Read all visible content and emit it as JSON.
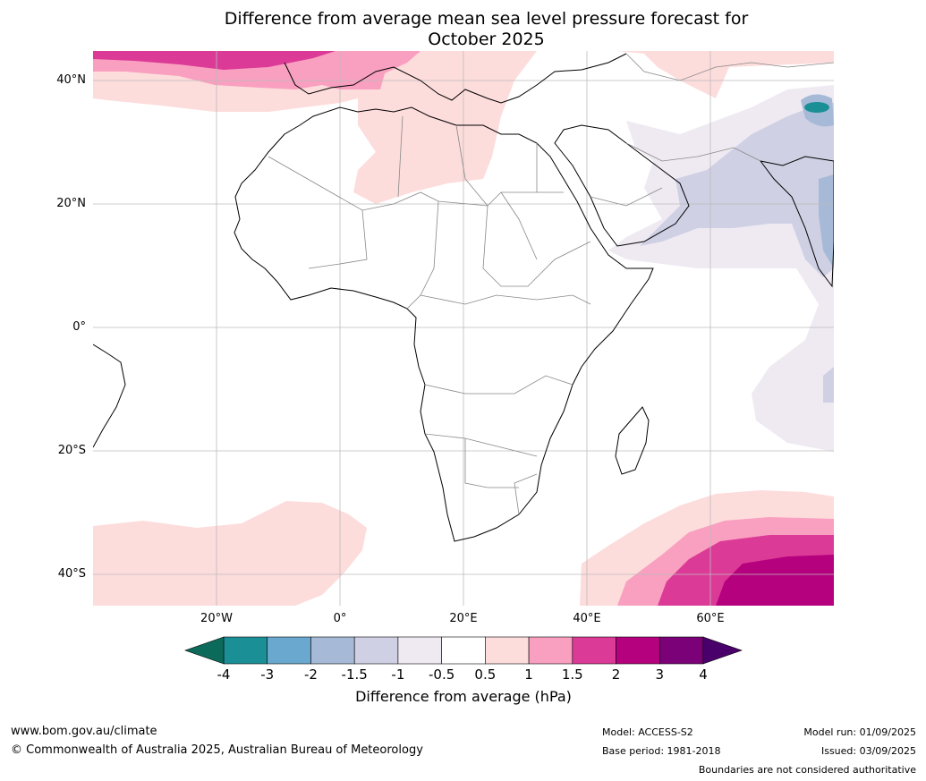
{
  "title_line1": "Difference from average mean sea level pressure forecast for",
  "title_line2": "October 2025",
  "lat_labels": [
    "40°N",
    "20°N",
    "0°",
    "20°S",
    "40°S"
  ],
  "lon_labels": [
    "20°W",
    "0°",
    "20°E",
    "40°E",
    "60°E"
  ],
  "colorbar": {
    "ticks": [
      "-4",
      "-3",
      "-2",
      "-1.5",
      "-1",
      "-0.5",
      "0.5",
      "1",
      "1.5",
      "2",
      "3",
      "4"
    ],
    "colors": [
      "#1b8f96",
      "#6aa8cf",
      "#a6b9d6",
      "#cfd0e4",
      "#efeaf2",
      "#ffffff",
      "#fddcdc",
      "#f99fbf",
      "#dc3a97",
      "#b5017e",
      "#7a0177"
    ],
    "under_color": "#0c6a5a",
    "over_color": "#49006a",
    "label": "Difference from average (hPa)"
  },
  "footer": {
    "url": "www.bom.gov.au/climate",
    "copyright": "© Commonwealth of Australia 2025, Australian Bureau of Meteorology",
    "model": "Model: ACCESS-S2",
    "base_period": "Base period: 1981-2018",
    "model_run": "Model run: 01/09/2025",
    "issued": "Issued: 03/09/2025",
    "boundaries_note": "Boundaries are not considered authoritative"
  }
}
